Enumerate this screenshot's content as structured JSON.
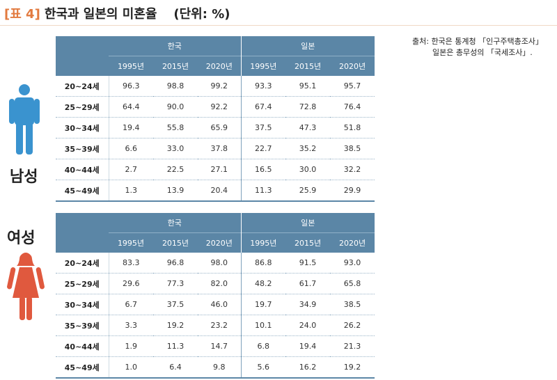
{
  "title": {
    "tag": "[표 4]",
    "main": "한국과 일본의 미혼율",
    "unit": "(단위: %)"
  },
  "source": {
    "line1": "출처: 한국은 통계청 「인구주택총조사」",
    "line2": "일본은 총무성의 「국세조사」."
  },
  "colors": {
    "header_bg": "#5b86a6",
    "male_figure": "#3a93cf",
    "female_figure": "#e0593e",
    "title_tag": "#e27a3f"
  },
  "icons": {
    "male": "male-figure-icon",
    "female": "female-figure-icon"
  },
  "male": {
    "label": "남성",
    "groups": [
      "한국",
      "일본"
    ],
    "years": [
      "1995년",
      "2015년",
      "2020년",
      "1995년",
      "2015년",
      "2020년"
    ],
    "rows": [
      {
        "age": "20~24세",
        "values": [
          "96.3",
          "98.8",
          "99.2",
          "93.3",
          "95.1",
          "95.7"
        ]
      },
      {
        "age": "25~29세",
        "values": [
          "64.4",
          "90.0",
          "92.2",
          "67.4",
          "72.8",
          "76.4"
        ]
      },
      {
        "age": "30~34세",
        "values": [
          "19.4",
          "55.8",
          "65.9",
          "37.5",
          "47.3",
          "51.8"
        ]
      },
      {
        "age": "35~39세",
        "values": [
          "6.6",
          "33.0",
          "37.8",
          "22.7",
          "35.2",
          "38.5"
        ]
      },
      {
        "age": "40~44세",
        "values": [
          "2.7",
          "22.5",
          "27.1",
          "16.5",
          "30.0",
          "32.2"
        ]
      },
      {
        "age": "45~49세",
        "values": [
          "1.3",
          "13.9",
          "20.4",
          "11.3",
          "25.9",
          "29.9"
        ]
      }
    ]
  },
  "female": {
    "label": "여성",
    "groups": [
      "한국",
      "일본"
    ],
    "years": [
      "1995년",
      "2015년",
      "2020년",
      "1995년",
      "2015년",
      "2020년"
    ],
    "rows": [
      {
        "age": "20~24세",
        "values": [
          "83.3",
          "96.8",
          "98.0",
          "86.8",
          "91.5",
          "93.0"
        ]
      },
      {
        "age": "25~29세",
        "values": [
          "29.6",
          "77.3",
          "82.0",
          "48.2",
          "61.7",
          "65.8"
        ]
      },
      {
        "age": "30~34세",
        "values": [
          "6.7",
          "37.5",
          "46.0",
          "19.7",
          "34.9",
          "38.5"
        ]
      },
      {
        "age": "35~39세",
        "values": [
          "3.3",
          "19.2",
          "23.2",
          "10.1",
          "24.0",
          "26.2"
        ]
      },
      {
        "age": "40~44세",
        "values": [
          "1.9",
          "11.3",
          "14.7",
          "6.8",
          "19.4",
          "21.3"
        ]
      },
      {
        "age": "45~49세",
        "values": [
          "1.0",
          "6.4",
          "9.8",
          "5.6",
          "16.2",
          "19.2"
        ]
      }
    ]
  }
}
